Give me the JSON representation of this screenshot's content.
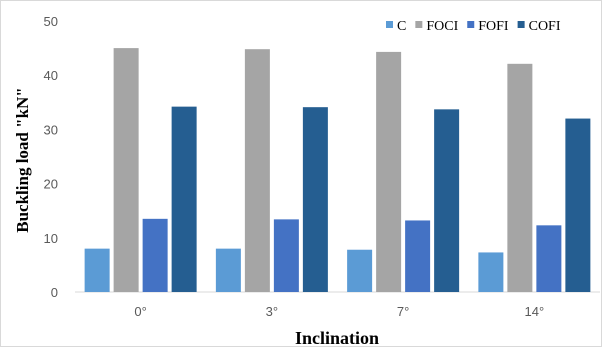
{
  "chart_data": {
    "type": "bar",
    "categories": [
      "0°",
      "3°",
      "7°",
      "14°"
    ],
    "series": [
      {
        "name": "C",
        "values": [
          8.0,
          8.0,
          7.8,
          7.3
        ],
        "color": "#5b9bd5"
      },
      {
        "name": "FOCI",
        "values": [
          45.0,
          44.8,
          44.3,
          42.1
        ],
        "color": "#a5a5a5"
      },
      {
        "name": "FOFI",
        "values": [
          13.5,
          13.4,
          13.2,
          12.3
        ],
        "color": "#4472c4"
      },
      {
        "name": "COFI",
        "values": [
          34.2,
          34.1,
          33.7,
          32.0
        ],
        "color": "#255e91"
      }
    ],
    "xlabel": "Inclination",
    "ylabel": "Buckling load \"kN\"",
    "yticks": [
      0,
      10,
      20,
      30,
      40,
      50
    ],
    "ylim": [
      0,
      50
    ],
    "grid": false,
    "legend_position": "top-right"
  }
}
